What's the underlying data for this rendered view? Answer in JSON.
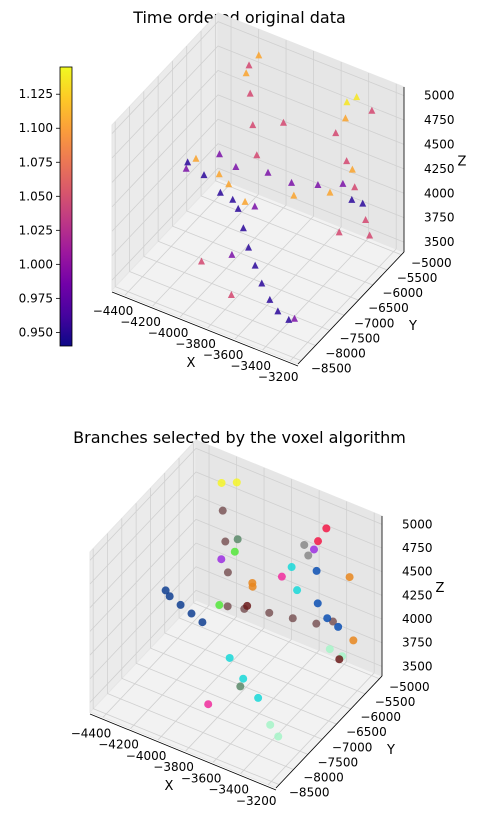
{
  "chart_data": [
    {
      "type": "scatter",
      "projection": "3d",
      "title": "Time ordered original data",
      "xlabel": "X",
      "ylabel": "Y",
      "zlabel": "Z",
      "xlim": [
        -4500,
        -3150
      ],
      "ylim": [
        -8600,
        -4900
      ],
      "zlim": [
        3400,
        5100
      ],
      "x_ticks": [
        "−4400",
        "−4200",
        "−4000",
        "−3800",
        "−3600",
        "−3400",
        "−3200"
      ],
      "y_ticks": [
        "−8500",
        "−8000",
        "−7500",
        "−7000",
        "−6500",
        "−6000",
        "−5500",
        "−5000"
      ],
      "z_ticks": [
        "3500",
        "3750",
        "4000",
        "4250",
        "4500",
        "4750",
        "5000"
      ],
      "marker": "triangle",
      "colormap": "plasma",
      "colorbar": {
        "min": 0.94,
        "max": 1.145,
        "ticks": [
          "0.950",
          "0.975",
          "1.000",
          "1.025",
          "1.050",
          "1.075",
          "1.100",
          "1.125"
        ]
      },
      "grid": true,
      "groups": [
        {
          "value": 0.95,
          "color": "#2a079a",
          "points": [
            [
              -4450,
              -6200,
              4000
            ],
            [
              -4300,
              -6350,
              4000
            ],
            [
              -4150,
              -6500,
              3950
            ],
            [
              -4000,
              -6600,
              3900
            ],
            [
              -3900,
              -6900,
              3850
            ],
            [
              -3800,
              -7200,
              3800
            ],
            [
              -3700,
              -7450,
              3750
            ],
            [
              -3600,
              -7700,
              3700
            ],
            [
              -3500,
              -7900,
              3650
            ],
            [
              -3400,
              -8100,
              3650
            ],
            [
              -3300,
              -8200,
              3650
            ],
            [
              -3300,
              -6000,
              4200
            ],
            [
              -3200,
              -6100,
              4250
            ],
            [
              -4050,
              -6550,
              3950
            ]
          ]
        },
        {
          "value": 1.0,
          "color": "#7a10a7",
          "points": [
            [
              -4450,
              -6250,
              3950
            ],
            [
              -4250,
              -6050,
              4150
            ],
            [
              -4100,
              -6200,
              4150
            ],
            [
              -3950,
              -5800,
              4050
            ],
            [
              -3800,
              -5700,
              4000
            ],
            [
              -3650,
              -5500,
              4000
            ],
            [
              -3500,
              -5350,
              4050
            ],
            [
              -3900,
              -7300,
              3700
            ],
            [
              -3300,
              -8000,
              3600
            ],
            [
              -3900,
              -6500,
              3950
            ]
          ]
        },
        {
          "value": 1.04,
          "color": "#d2456e",
          "points": [
            [
              -4000,
              -5950,
              4250
            ],
            [
              -4050,
              -5850,
              4500
            ],
            [
              -4100,
              -5700,
              4750
            ],
            [
              -4150,
              -5500,
              4950
            ],
            [
              -3900,
              -5500,
              4500
            ],
            [
              -3500,
              -5600,
              4650
            ],
            [
              -3400,
              -5700,
              4450
            ],
            [
              -3300,
              -5900,
              4300
            ],
            [
              -3200,
              -6000,
              4050
            ],
            [
              -3150,
              -6100,
              3950
            ],
            [
              -3350,
              -6200,
              3900
            ],
            [
              -4100,
              -7400,
              3550
            ],
            [
              -3800,
              -7800,
              3500
            ],
            [
              -3300,
              -5300,
              4900
            ]
          ]
        },
        {
          "value": 1.09,
          "color": "#f9a22b",
          "points": [
            [
              -4400,
              -6150,
              4050
            ],
            [
              -4200,
              -6300,
              4050
            ],
            [
              -4100,
              -6450,
              4050
            ],
            [
              -3950,
              -6600,
              4000
            ],
            [
              -3700,
              -6100,
              4050
            ],
            [
              -3500,
              -5800,
              4100
            ],
            [
              -3400,
              -5500,
              4300
            ],
            [
              -4150,
              -5600,
              4900
            ],
            [
              -4100,
              -5400,
              5050
            ],
            [
              -3450,
              -5500,
              4800
            ]
          ]
        },
        {
          "value": 1.13,
          "color": "#f6e520",
          "points": [
            [
              -3450,
              -5450,
              4950
            ],
            [
              -3400,
              -5350,
              5000
            ]
          ]
        }
      ]
    },
    {
      "type": "scatter",
      "projection": "3d",
      "title": "Branches selected by the voxel algorithm",
      "xlabel": "X",
      "ylabel": "Y",
      "zlabel": "Z",
      "xlim": [
        -4500,
        -3150
      ],
      "ylim": [
        -8600,
        -4900
      ],
      "zlim": [
        3400,
        5100
      ],
      "x_ticks": [
        "−4400",
        "−4200",
        "−4000",
        "−3800",
        "−3600",
        "−3400",
        "−3200"
      ],
      "y_ticks": [
        "−8500",
        "−8000",
        "−7500",
        "−7000",
        "−6500",
        "−6000",
        "−5500",
        "−5000"
      ],
      "z_ticks": [
        "3500",
        "3750",
        "4000",
        "4250",
        "4500",
        "4750",
        "5000"
      ],
      "marker": "circle",
      "grid": true,
      "branches": [
        {
          "color": "#103f92",
          "points": [
            [
              -4450,
              -6200,
              3950
            ],
            [
              -4400,
              -6300,
              3950
            ],
            [
              -4300,
              -6400,
              3950
            ],
            [
              -4200,
              -6500,
              3950
            ],
            [
              -4100,
              -6600,
              3950
            ]
          ]
        },
        {
          "color": "#7a5557",
          "points": [
            [
              -4000,
              -6200,
              4050
            ],
            [
              -3900,
              -6100,
              4050
            ],
            [
              -3750,
              -5950,
              4050
            ],
            [
              -3600,
              -5850,
              4050
            ],
            [
              -3450,
              -5750,
              4050
            ],
            [
              -3350,
              -5650,
              4100
            ],
            [
              -4050,
              -5950,
              4300
            ],
            [
              -4100,
              -5800,
              4550
            ],
            [
              -4150,
              -5650,
              4800
            ]
          ]
        },
        {
          "color": "#18d8d8",
          "points": [
            [
              -3850,
              -6850,
              3800
            ],
            [
              -3700,
              -7100,
              3750
            ],
            [
              -3550,
              -7300,
              3700
            ],
            [
              -3650,
              -5650,
              4500
            ],
            [
              -3600,
              -5700,
              4300
            ]
          ]
        },
        {
          "color": "#a6f5c8",
          "points": [
            [
              -3400,
              -7600,
              3600
            ],
            [
              -3300,
              -7800,
              3600
            ],
            [
              -3300,
              -6000,
              3950
            ],
            [
              -3200,
              -6050,
              3950
            ]
          ]
        },
        {
          "color": "#0a4fb3",
          "points": [
            [
              -3500,
              -5500,
              4500
            ],
            [
              -3450,
              -5700,
              4250
            ],
            [
              -3350,
              -5850,
              4200
            ],
            [
              -3250,
              -5950,
              4200
            ]
          ]
        },
        {
          "color": "#e7861d",
          "points": [
            [
              -3850,
              -6050,
              4300
            ],
            [
              -3800,
              -6300,
              4450
            ],
            [
              -3250,
              -5550,
              4600
            ],
            [
              -3150,
              -5900,
              4100
            ]
          ]
        },
        {
          "color": "#f4f428",
          "points": [
            [
              -4200,
              -5450,
              5000
            ],
            [
              -4100,
              -5400,
              5050
            ]
          ]
        },
        {
          "color": "#f21846",
          "points": [
            [
              -3450,
              -5400,
              4950
            ],
            [
              -3500,
              -5450,
              4800
            ]
          ]
        },
        {
          "color": "#888888",
          "points": [
            [
              -3600,
              -5450,
              4700
            ],
            [
              -3550,
              -5550,
              4650
            ]
          ]
        },
        {
          "color": "#9b2ee0",
          "points": [
            [
              -4150,
              -5700,
              4300
            ],
            [
              -3550,
              -5350,
              4650
            ]
          ]
        },
        {
          "color": "#52e63a",
          "points": [
            [
              -4050,
              -6250,
              4050
            ],
            [
              -4000,
              -5950,
              4550
            ]
          ]
        },
        {
          "color": "#5a8a6a",
          "points": [
            [
              -4000,
              -5850,
              4650
            ],
            [
              -3700,
              -7200,
              3700
            ]
          ]
        },
        {
          "color": "#f02c9c",
          "points": [
            [
              -3850,
              -7600,
              3550
            ],
            [
              -3700,
              -5750,
              4400
            ]
          ]
        },
        {
          "color": "#6b1a1a",
          "points": [
            [
              -3900,
              -6000,
              4050
            ],
            [
              -3200,
              -6150,
              3950
            ]
          ]
        }
      ]
    }
  ]
}
